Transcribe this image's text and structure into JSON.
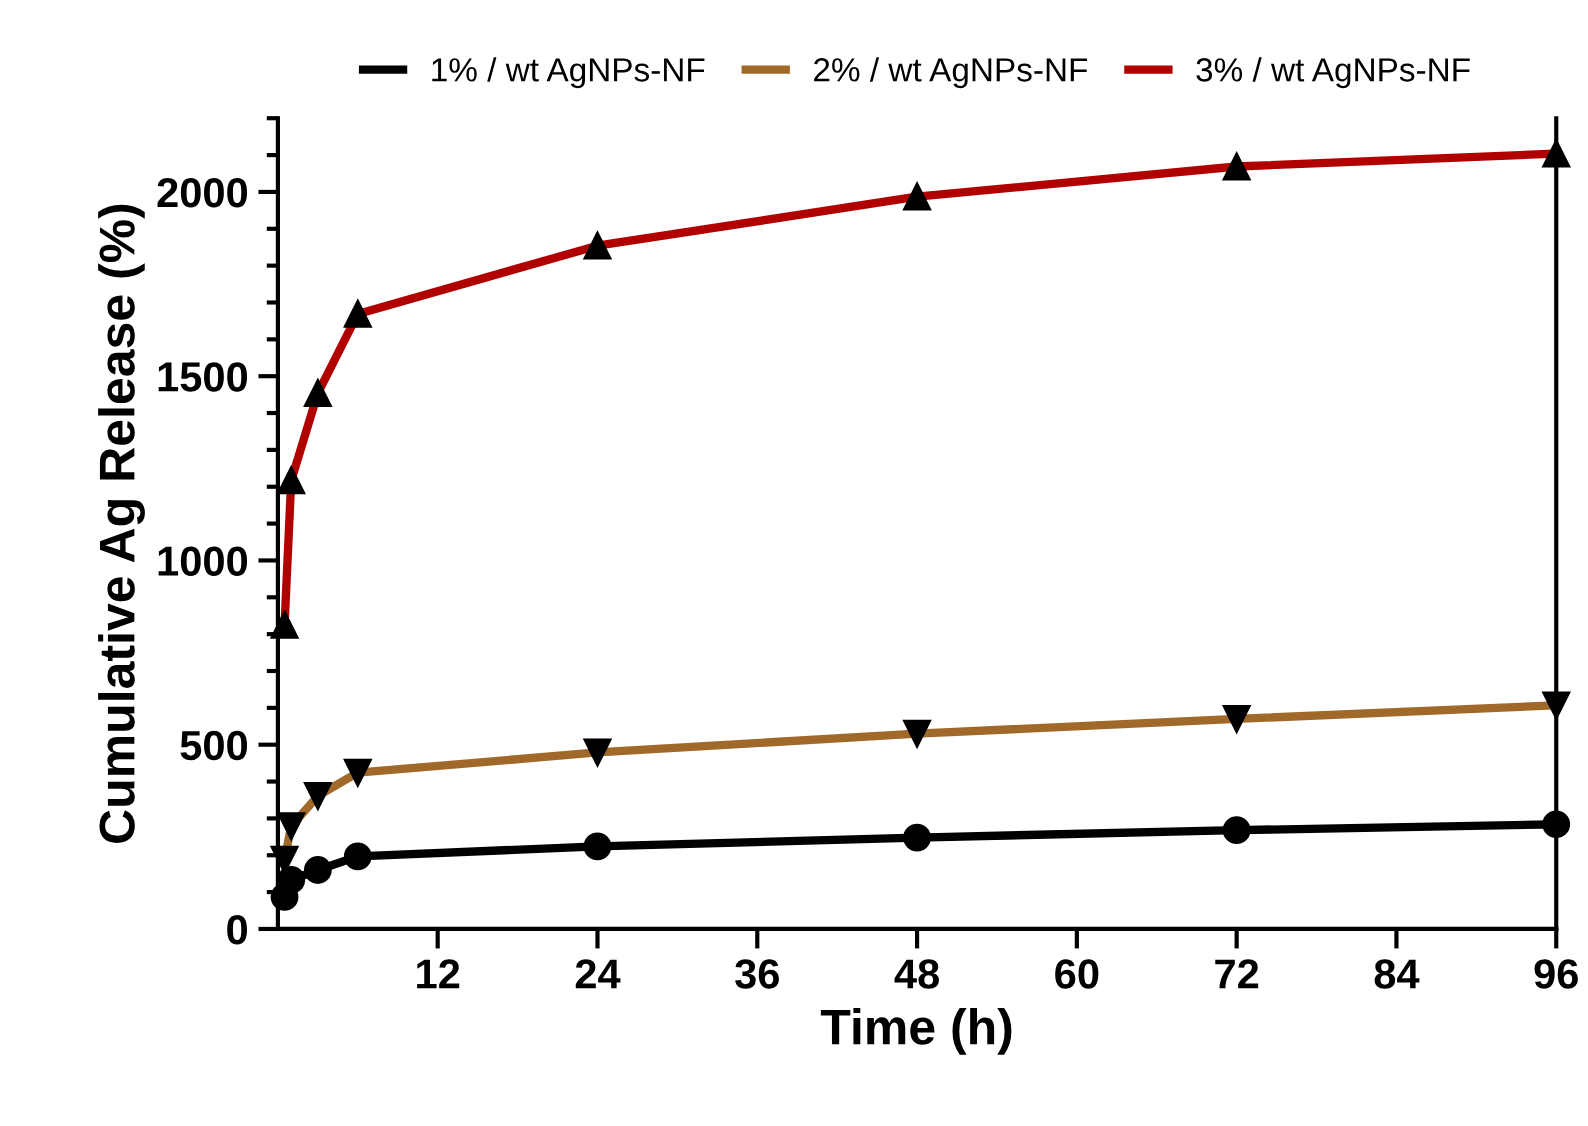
{
  "chart_data": {
    "type": "line",
    "xlabel": "Time (h)",
    "ylabel": "Cumulative Ag Release (%)",
    "x": [
      0.5,
      1,
      3,
      6,
      24,
      48,
      72,
      96
    ],
    "series": [
      {
        "name": "1% / wt AgNPs-NF",
        "color": "#000000",
        "marker": "circle",
        "values": [
          87,
          133,
          160,
          197,
          224,
          248,
          268,
          284
        ]
      },
      {
        "name": "2% / wt AgNPs-NF",
        "color": "#a0692a",
        "marker": "triangle_down",
        "values": [
          188,
          279,
          361,
          424,
          479,
          530,
          570,
          607
        ]
      },
      {
        "name": "3% / wt AgNPs-NF",
        "color": "#b00000",
        "marker": "triangle",
        "values": [
          825,
          1217,
          1454,
          1669,
          1854,
          1987,
          2069,
          2104
        ]
      }
    ],
    "xlim": [
      0,
      96
    ],
    "xticks": [
      12,
      24,
      36,
      48,
      60,
      72,
      84,
      96
    ],
    "ylim": [
      0,
      2200
    ],
    "yticks": [
      0,
      500,
      1000,
      1500,
      2000
    ],
    "legend": "top",
    "grid": false,
    "line_style": "solid"
  }
}
